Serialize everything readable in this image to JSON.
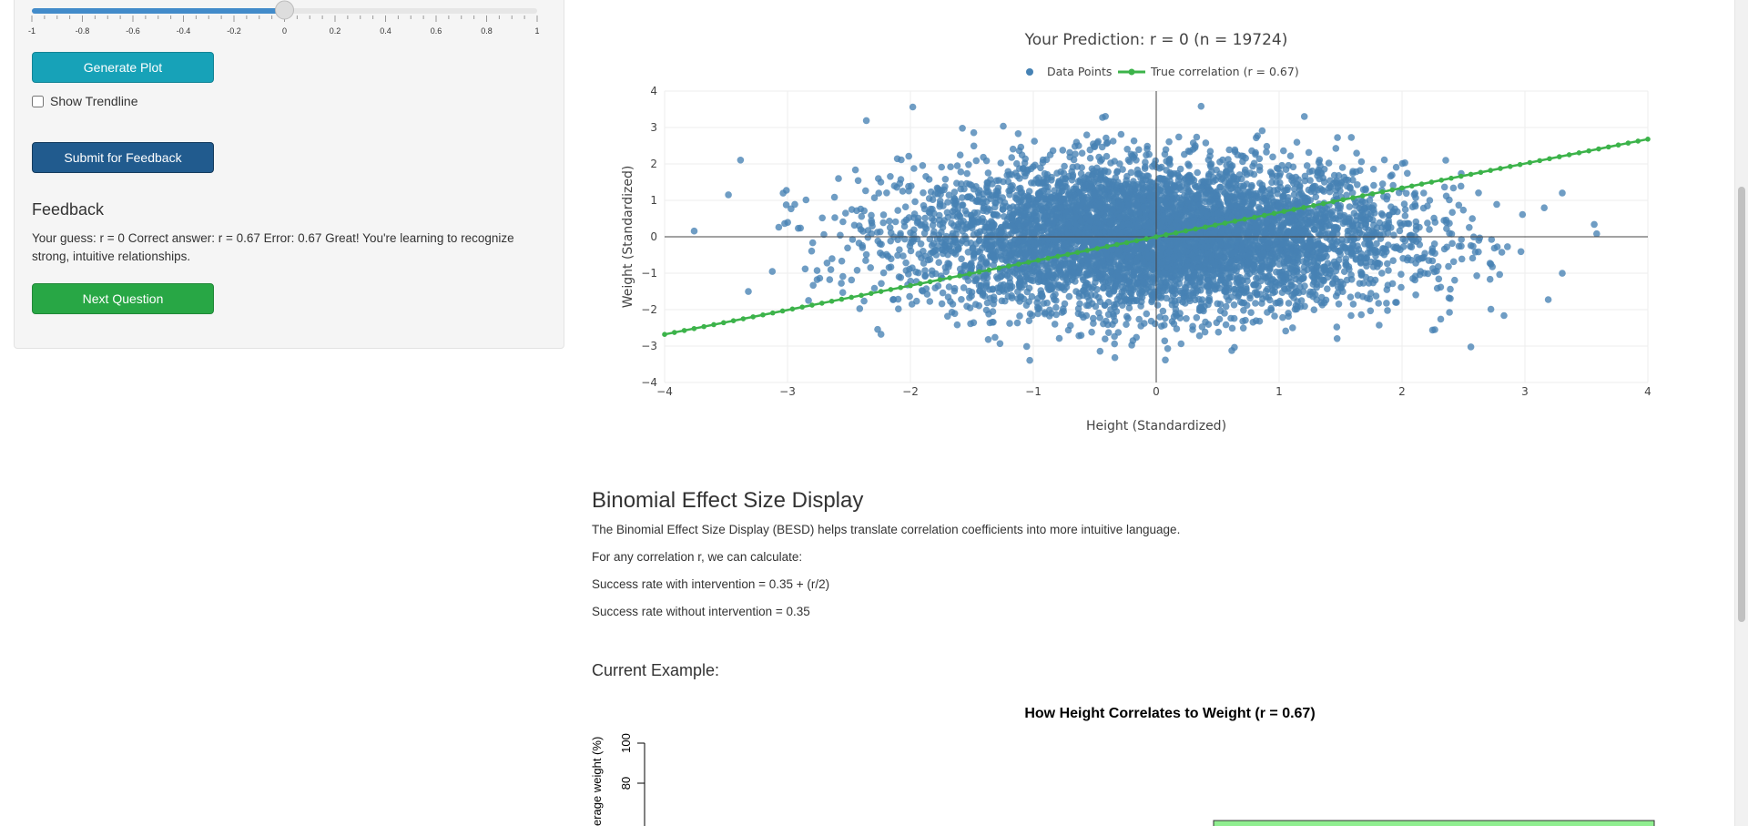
{
  "sidebar": {
    "slider": {
      "value": 0,
      "min": -1,
      "max": 1,
      "ticks": [
        "-1",
        "-0.8",
        "-0.6",
        "-0.4",
        "-0.2",
        "0",
        "0.2",
        "0.4",
        "0.6",
        "0.8",
        "1"
      ]
    },
    "generate_label": "Generate Plot",
    "trendline_label": "Show Trendline",
    "trendline_checked": false,
    "submit_label": "Submit for Feedback",
    "feedback_heading": "Feedback",
    "feedback_text": "Your guess: r = 0 Correct answer: r = 0.67 Error: 0.67 Great! You're learning to recognize strong, intuitive relationships.",
    "next_label": "Next Question"
  },
  "chart_data": [
    {
      "type": "scatter",
      "title": "Your Prediction: r = 0 (n = 19724)",
      "xlabel": "Height (Standardized)",
      "ylabel": "Weight (Standardized)",
      "xlim": [
        -4,
        4
      ],
      "ylim": [
        -4,
        4
      ],
      "xticks": [
        "−4",
        "−3",
        "−2",
        "−1",
        "0",
        "1",
        "2",
        "3",
        "4"
      ],
      "yticks": [
        "4",
        "3",
        "2",
        "1",
        "0",
        "−1",
        "−2",
        "−3",
        "−4"
      ],
      "grid": true,
      "legend_position": "top",
      "series": [
        {
          "name": "Data Points",
          "kind": "markers",
          "color": "#4682b4",
          "n": 19724,
          "x_mean": 0,
          "y_mean": 0,
          "x_sd": 1,
          "y_sd": 1,
          "r": 0
        },
        {
          "name": "True correlation (r = 0.67)",
          "kind": "line",
          "color": "#3cb34a",
          "slope": 0.67,
          "x": [
            -4,
            4
          ],
          "y": [
            -2.68,
            2.68
          ]
        }
      ]
    },
    {
      "type": "bar",
      "title": "How Height Correlates to Weight (r = 0.67)",
      "ylabel": "erage weight (%)",
      "yticks": [
        "100",
        "80"
      ],
      "ylim": [
        0,
        100
      ],
      "bar_color": "#90ee90"
    }
  ],
  "besd": {
    "title": "Binomial Effect Size Display",
    "p1": "The Binomial Effect Size Display (BESD) helps translate correlation coefficients into more intuitive language.",
    "p2": "For any correlation r, we can calculate:",
    "p3": "Success rate with intervention = 0.35 + (r/2)",
    "p4": "Success rate without intervention = 0.35",
    "current_example": "Current Example:"
  }
}
